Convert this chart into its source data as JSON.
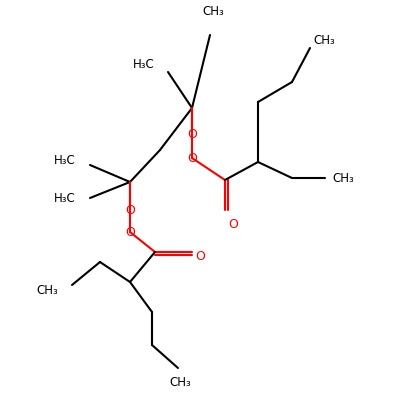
{
  "figsize": [
    4.0,
    4.0
  ],
  "dpi": 100,
  "bg": "#ffffff",
  "black": "#000000",
  "red": "#ff0000",
  "lw": 1.5,
  "fs": 8.5
}
